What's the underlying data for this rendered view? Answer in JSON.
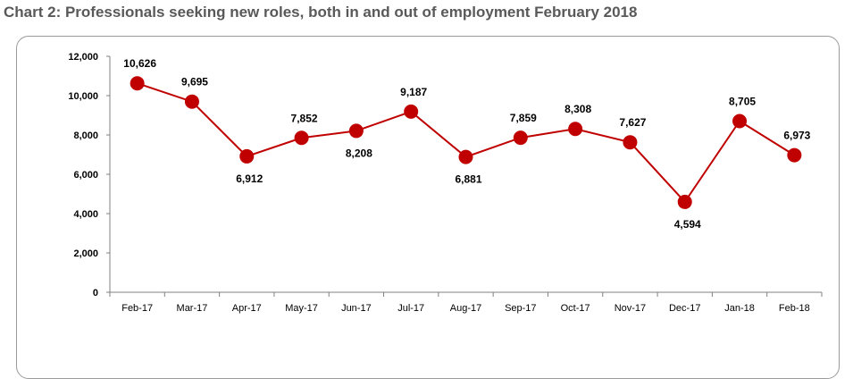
{
  "title": "Chart 2: Professionals seeking new roles, both in and out of employment February 2018",
  "chart_data": {
    "type": "line",
    "title": "Chart 2: Professionals seeking new roles, both in and out of employment February 2018",
    "categories": [
      "Feb-17",
      "Mar-17",
      "Apr-17",
      "May-17",
      "Jun-17",
      "Jul-17",
      "Aug-17",
      "Sep-17",
      "Oct-17",
      "Nov-17",
      "Dec-17",
      "Jan-18",
      "Feb-18"
    ],
    "series": [
      {
        "values": [
          10626,
          9695,
          6912,
          7852,
          8208,
          9187,
          6881,
          7859,
          8308,
          7627,
          4594,
          8705,
          6973
        ],
        "labels": [
          "10,626",
          "9,695",
          "6,912",
          "7,852",
          "8,208",
          "9,187",
          "6,881",
          "7,859",
          "8,308",
          "7,627",
          "4,594",
          "8,705",
          "6,973"
        ],
        "label_positions": [
          "above",
          "above",
          "below",
          "above",
          "below",
          "above",
          "below",
          "above",
          "above",
          "above",
          "below",
          "above",
          "above"
        ],
        "color": "#c00000"
      }
    ],
    "ylim": [
      0,
      12000
    ],
    "yticks": [
      0,
      2000,
      4000,
      6000,
      8000,
      10000,
      12000
    ],
    "ytick_labels": [
      "0",
      "2,000",
      "4,000",
      "6,000",
      "8,000",
      "10,000",
      "12,000"
    ],
    "grid": false,
    "legend": "none",
    "xlabel": "",
    "ylabel": ""
  }
}
